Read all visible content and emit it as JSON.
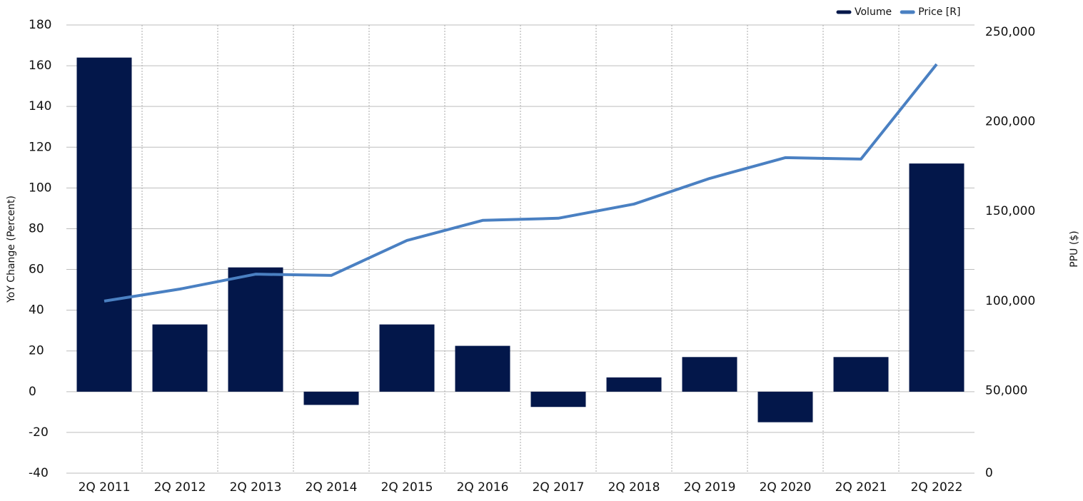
{
  "chart_data": {
    "type": "bar-line",
    "categories": [
      "2Q 2011",
      "2Q 2012",
      "2Q 2013",
      "2Q 2014",
      "2Q 2015",
      "2Q 2016",
      "2Q 2017",
      "2Q 2018",
      "2Q 2019",
      "2Q 2020",
      "2Q 2021",
      "2Q 2022"
    ],
    "series": [
      {
        "name": "Volume",
        "color": "#03174a",
        "type": "bar",
        "values": [
          164,
          33,
          61,
          -6.5,
          33,
          22.5,
          -7.5,
          7,
          17,
          -15,
          17,
          112
        ]
      },
      {
        "name": "Price [R]",
        "color": "#4a80c2",
        "type": "line",
        "axis": "y2",
        "values": [
          96000,
          102700,
          111000,
          110300,
          129800,
          141000,
          142200,
          150100,
          164400,
          176000,
          175200,
          228100
        ]
      }
    ],
    "ylabel": "YoY Change (Percent)",
    "y2label": "PPU ($)",
    "ylim": [
      -40,
      180
    ],
    "yticks": [
      -40,
      -20,
      0,
      20,
      40,
      60,
      80,
      100,
      120,
      140,
      160,
      180
    ],
    "y2lim": [
      0,
      250000
    ],
    "y2ticks": [
      0,
      {
        "value": 50000,
        "label": "50,000"
      },
      {
        "value": 100000,
        "label": "100,000"
      },
      {
        "value": 150000,
        "label": "150,000"
      },
      {
        "value": 200000,
        "label": "200,000"
      },
      {
        "value": 250000,
        "label": "250,000"
      }
    ],
    "grid": true,
    "legend": "top-right"
  }
}
